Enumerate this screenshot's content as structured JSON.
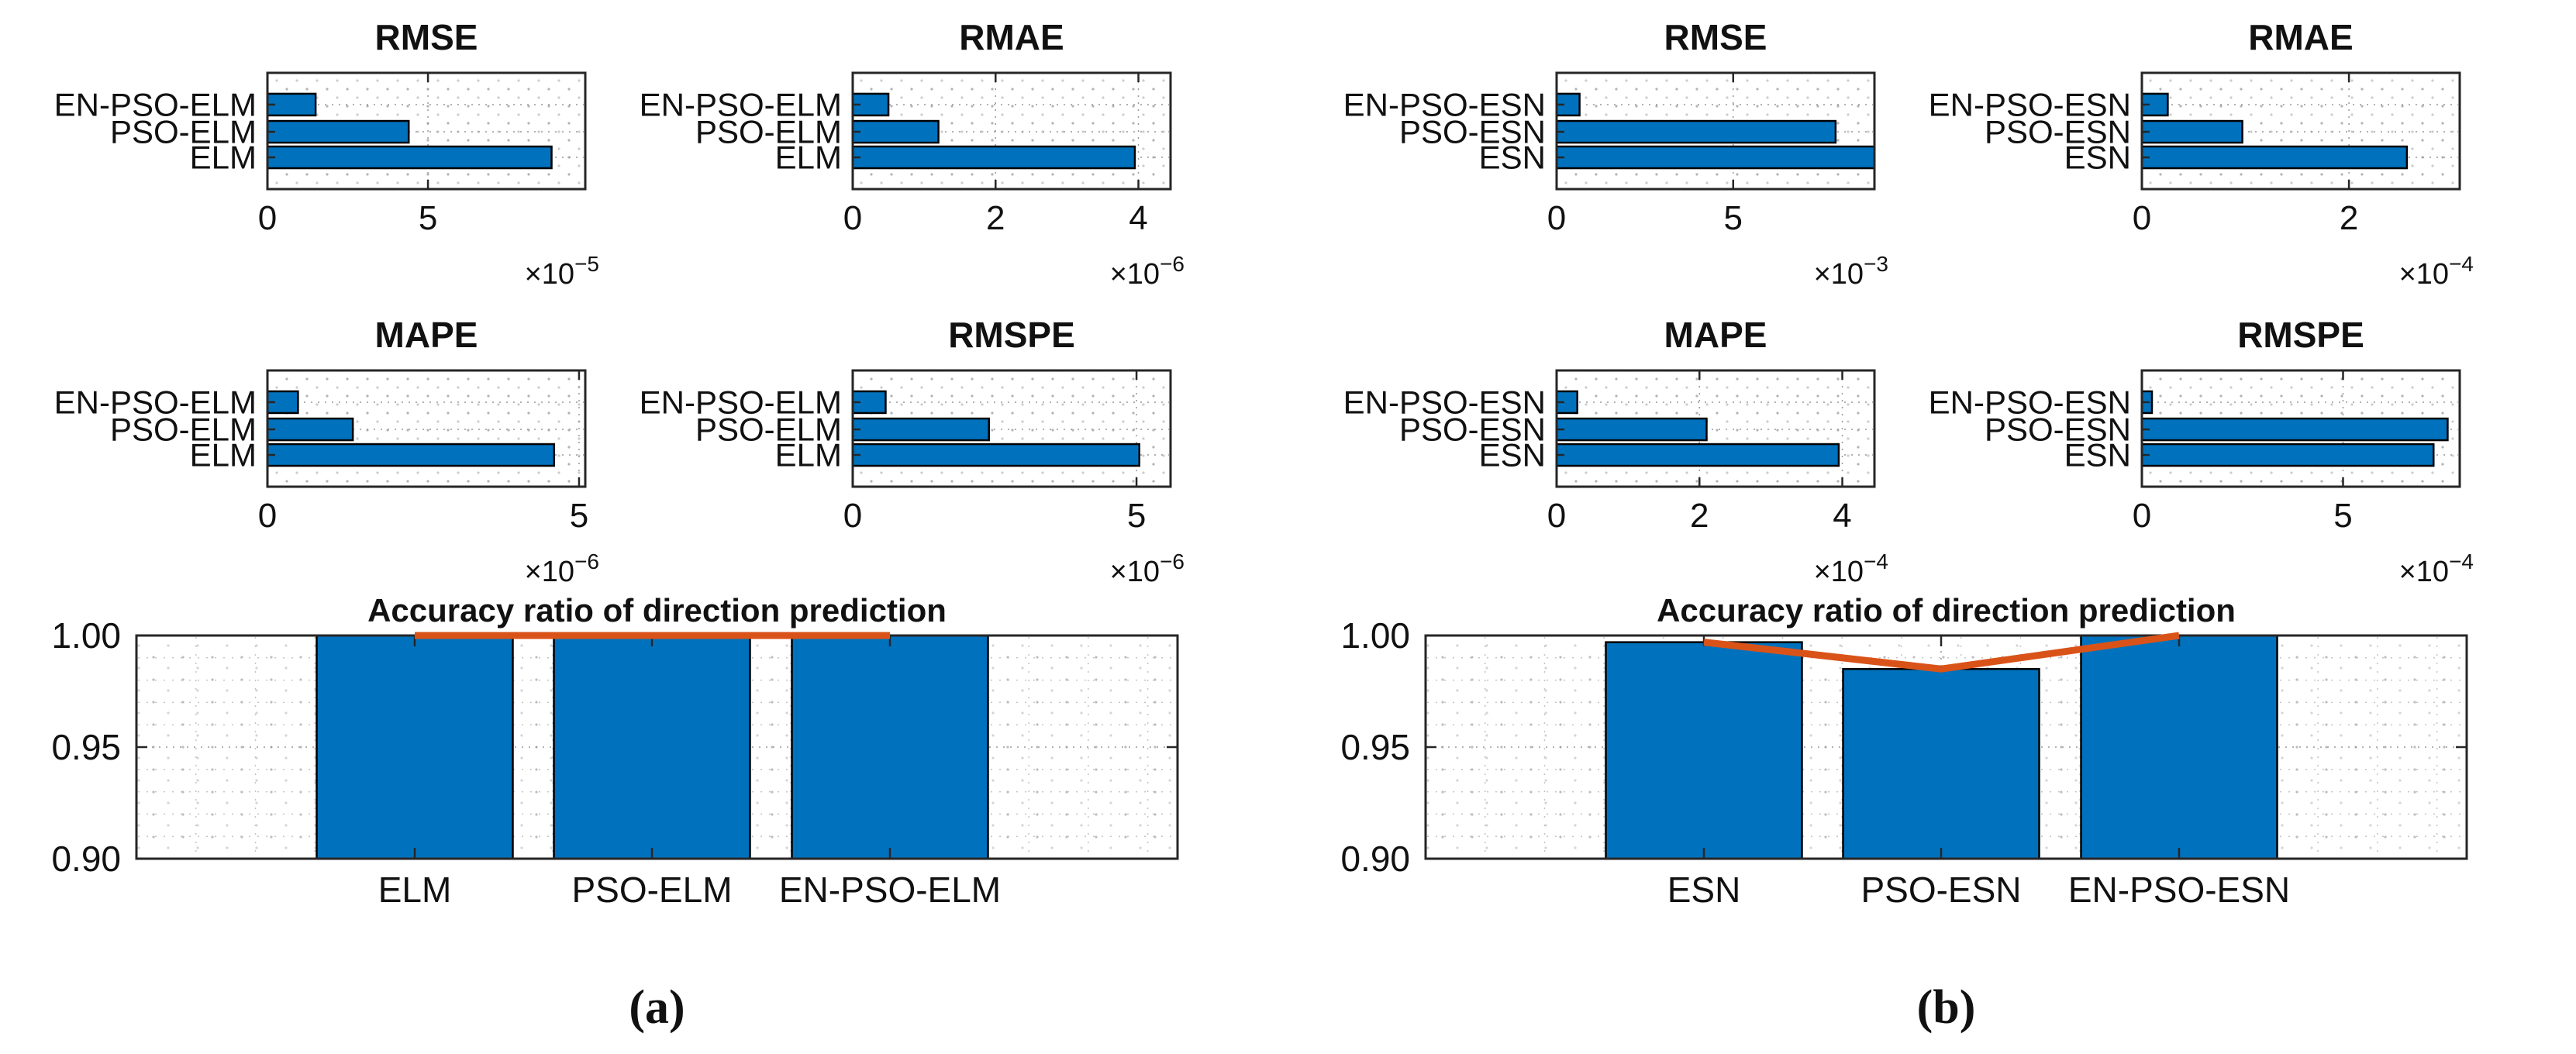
{
  "figure": {
    "background": "#ffffff",
    "bar_fill": "#0072BD",
    "bar_edge": "#000000",
    "accuracy_line_color": "#D95319",
    "axis_color": "#262626",
    "grid_dot_color": "#b3b3b3"
  },
  "chart_data": {
    "type": "bar",
    "panels": [
      {
        "caption": "(a)",
        "metrics": [
          {
            "type": "barh",
            "title": "RMSE",
            "categories": [
              "EN-PSO-ELM",
              "PSO-ELM",
              "ELM"
            ],
            "values": [
              1.5e-05,
              4.4e-05,
              8.85e-05
            ],
            "xlim": [
              0,
              9.9e-05
            ],
            "xticks": [
              {
                "value": 0,
                "label": "0"
              },
              {
                "value": 5e-05,
                "label": "5"
              }
            ],
            "exponent": {
              "base": "×10",
              "power": "−5"
            }
          },
          {
            "type": "barh",
            "title": "RMAE",
            "categories": [
              "EN-PSO-ELM",
              "PSO-ELM",
              "ELM"
            ],
            "values": [
              5e-07,
              1.2e-06,
              3.95e-06
            ],
            "xlim": [
              0,
              4.45e-06
            ],
            "xticks": [
              {
                "value": 0,
                "label": "0"
              },
              {
                "value": 2e-06,
                "label": "2"
              },
              {
                "value": 4e-06,
                "label": "4"
              }
            ],
            "exponent": {
              "base": "×10",
              "power": "−6"
            }
          },
          {
            "type": "barh",
            "title": "MAPE",
            "categories": [
              "EN-PSO-ELM",
              "PSO-ELM",
              "ELM"
            ],
            "values": [
              4.9e-07,
              1.37e-06,
              4.6e-06
            ],
            "xlim": [
              0,
              5.1e-06
            ],
            "xticks": [
              {
                "value": 0,
                "label": "0"
              },
              {
                "value": 5e-06,
                "label": "5"
              }
            ],
            "exponent": {
              "base": "×10",
              "power": "−6"
            }
          },
          {
            "type": "barh",
            "title": "RMSPE",
            "categories": [
              "EN-PSO-ELM",
              "PSO-ELM",
              "ELM"
            ],
            "values": [
              5.8e-07,
              2.4e-06,
              5.05e-06
            ],
            "xlim": [
              0,
              5.6e-06
            ],
            "xticks": [
              {
                "value": 0,
                "label": "0"
              },
              {
                "value": 5e-06,
                "label": "5"
              }
            ],
            "exponent": {
              "base": "×10",
              "power": "−6"
            }
          }
        ],
        "accuracy": {
          "type": "bar",
          "title": "Accuracy ratio of direction prediction",
          "categories": [
            "ELM",
            "PSO-ELM",
            "EN-PSO-ELM"
          ],
          "bar_values": [
            1.0,
            1.0,
            1.0
          ],
          "line_values": [
            1.0,
            1.0,
            1.0
          ],
          "ylim": [
            0.9,
            1.0
          ],
          "yticks": [
            {
              "value": 0.9,
              "label": "0.90"
            },
            {
              "value": 0.95,
              "label": "0.95"
            },
            {
              "value": 1.0,
              "label": "1.00"
            }
          ]
        }
      },
      {
        "caption": "(b)",
        "metrics": [
          {
            "type": "barh",
            "title": "RMSE",
            "categories": [
              "EN-PSO-ESN",
              "PSO-ESN",
              "ESN"
            ],
            "values": [
              0.00065,
              0.0079,
              0.009
            ],
            "xlim": [
              0,
              0.009
            ],
            "xticks": [
              {
                "value": 0,
                "label": "0"
              },
              {
                "value": 0.005,
                "label": "5"
              }
            ],
            "exponent": {
              "base": "×10",
              "power": "−3"
            }
          },
          {
            "type": "barh",
            "title": "RMAE",
            "categories": [
              "EN-PSO-ESN",
              "PSO-ESN",
              "ESN"
            ],
            "values": [
              2.5e-05,
              9.7e-05,
              0.000256
            ],
            "xlim": [
              0,
              0.000307
            ],
            "xticks": [
              {
                "value": 0,
                "label": "0"
              },
              {
                "value": 0.0002,
                "label": "2"
              }
            ],
            "exponent": {
              "base": "×10",
              "power": "−4"
            }
          },
          {
            "type": "barh",
            "title": "MAPE",
            "categories": [
              "EN-PSO-ESN",
              "PSO-ESN",
              "ESN"
            ],
            "values": [
              2.9e-05,
              0.00021,
              0.000395
            ],
            "xlim": [
              0,
              0.000445
            ],
            "xticks": [
              {
                "value": 0,
                "label": "0"
              },
              {
                "value": 0.0002,
                "label": "2"
              },
              {
                "value": 0.0004,
                "label": "4"
              }
            ],
            "exponent": {
              "base": "×10",
              "power": "−4"
            }
          },
          {
            "type": "barh",
            "title": "RMSPE",
            "categories": [
              "EN-PSO-ESN",
              "PSO-ESN",
              "ESN"
            ],
            "values": [
              2.5e-05,
              0.00076,
              0.000725
            ],
            "xlim": [
              0,
              0.00079
            ],
            "xticks": [
              {
                "value": 0,
                "label": "0"
              },
              {
                "value": 0.0005,
                "label": "5"
              }
            ],
            "exponent": {
              "base": "×10",
              "power": "−4"
            }
          }
        ],
        "accuracy": {
          "type": "bar",
          "title": "Accuracy ratio of direction prediction",
          "categories": [
            "ESN",
            "PSO-ESN",
            "EN-PSO-ESN"
          ],
          "bar_values": [
            0.997,
            0.985,
            1.0
          ],
          "line_values": [
            0.997,
            0.985,
            1.0
          ],
          "ylim": [
            0.9,
            1.0
          ],
          "yticks": [
            {
              "value": 0.9,
              "label": "0.90"
            },
            {
              "value": 0.95,
              "label": "0.95"
            },
            {
              "value": 1.0,
              "label": "1.00"
            }
          ]
        }
      }
    ]
  }
}
